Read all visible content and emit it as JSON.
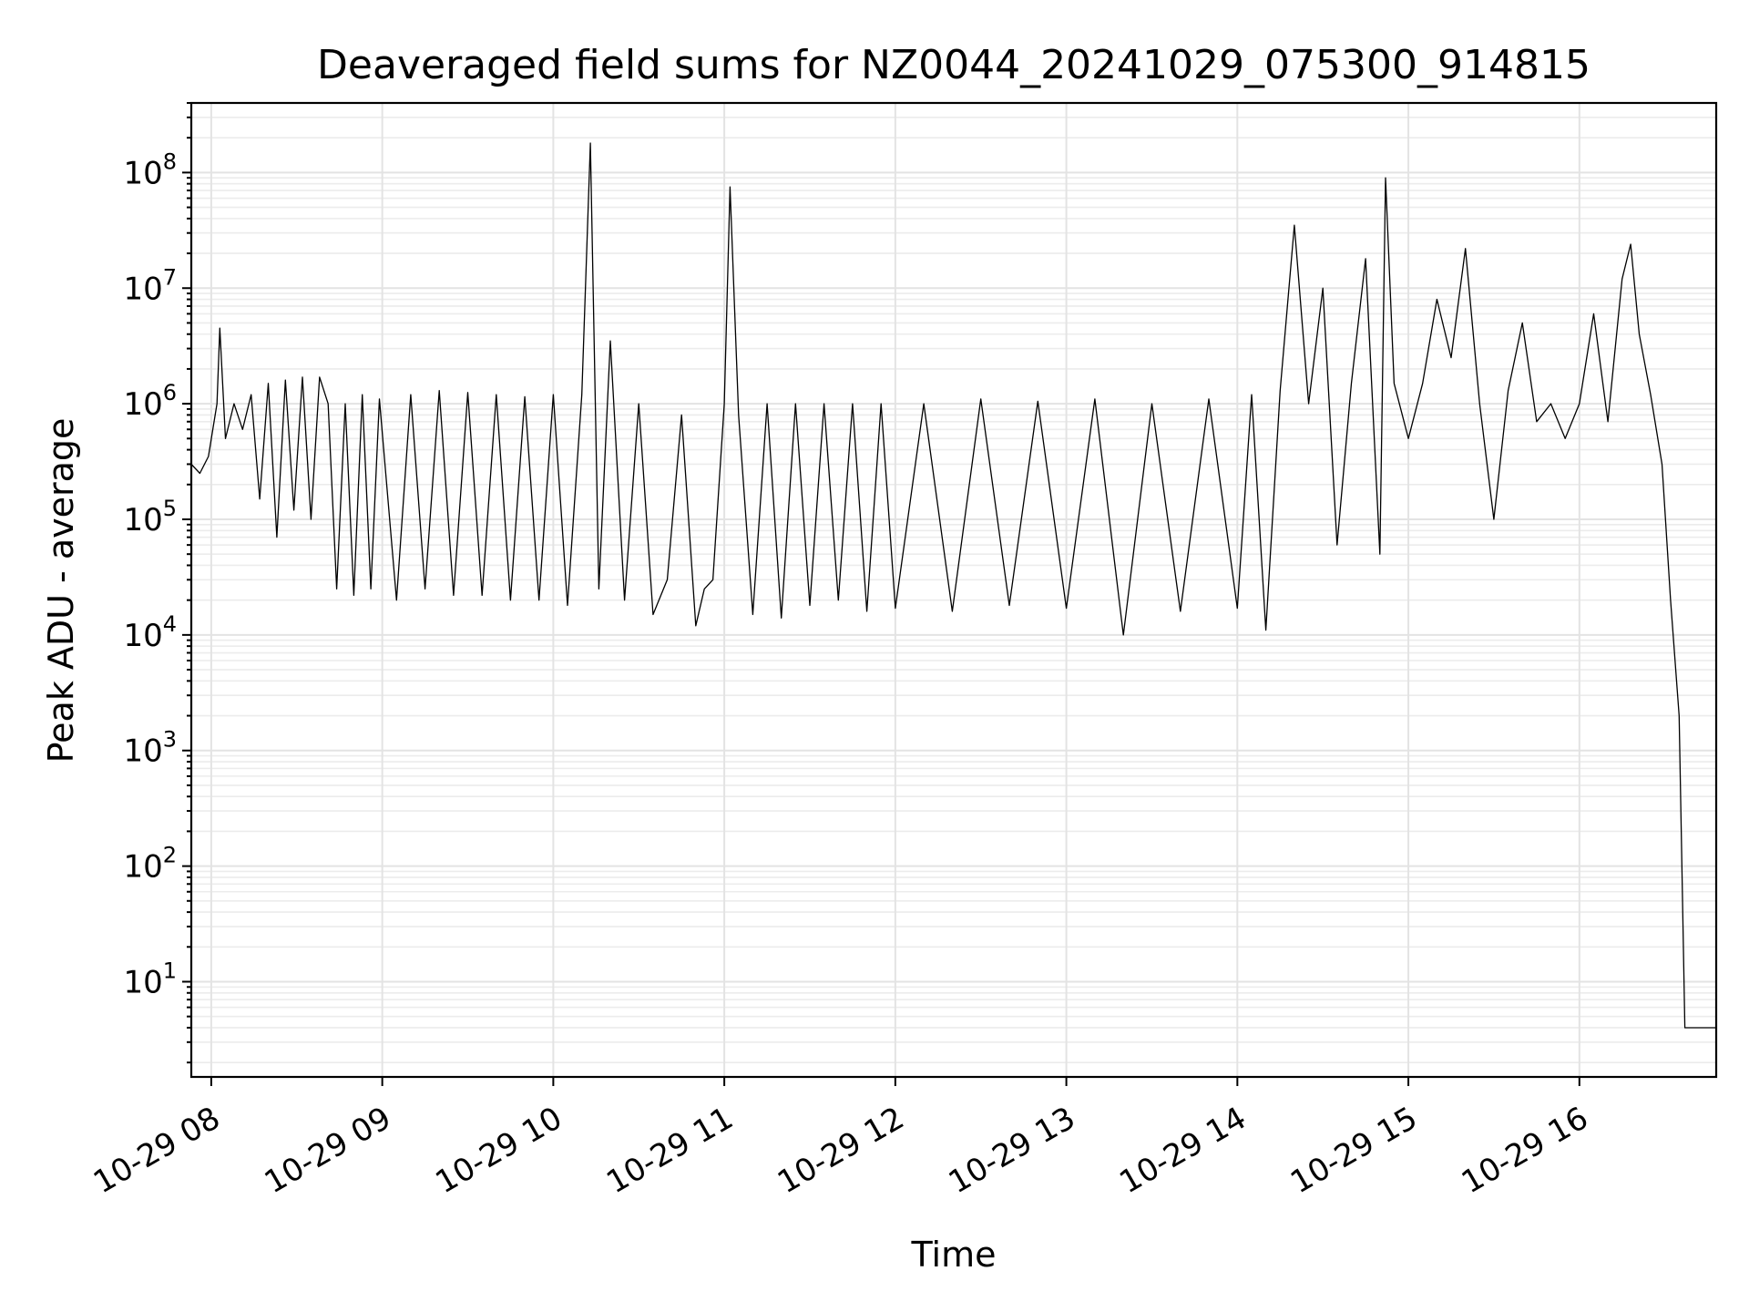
{
  "chart_data": {
    "type": "line",
    "title": "Deaveraged field sums for NZ0044_20241029_075300_914815",
    "xlabel": "Time",
    "ylabel": "Peak ADU - average",
    "yscale": "log",
    "ylim": [
      1.5,
      400000000
    ],
    "xlim": [
      "2024-10-29 07:53",
      "2024-10-29 16:48"
    ],
    "grid": true,
    "x_ticks": [
      "10-29 08",
      "10-29 09",
      "10-29 10",
      "10-29 11",
      "10-29 12",
      "10-29 13",
      "10-29 14",
      "10-29 15",
      "10-29 16"
    ],
    "x_tick_times": [
      "2024-10-29 08:00",
      "2024-10-29 09:00",
      "2024-10-29 10:00",
      "2024-10-29 11:00",
      "2024-10-29 12:00",
      "2024-10-29 13:00",
      "2024-10-29 14:00",
      "2024-10-29 15:00",
      "2024-10-29 16:00"
    ],
    "y_ticks": [
      {
        "base": "10",
        "exp": "1",
        "value": 10
      },
      {
        "base": "10",
        "exp": "2",
        "value": 100
      },
      {
        "base": "10",
        "exp": "3",
        "value": 1000
      },
      {
        "base": "10",
        "exp": "4",
        "value": 10000
      },
      {
        "base": "10",
        "exp": "5",
        "value": 100000
      },
      {
        "base": "10",
        "exp": "6",
        "value": 1000000
      },
      {
        "base": "10",
        "exp": "7",
        "value": 10000000
      },
      {
        "base": "10",
        "exp": "8",
        "value": 100000000
      }
    ],
    "series": [
      {
        "color": "#000000",
        "x": [
          "2024-10-29 07:53",
          "2024-10-29 07:56",
          "2024-10-29 07:59",
          "2024-10-29 08:02",
          "2024-10-29 08:03",
          "2024-10-29 08:05",
          "2024-10-29 08:08",
          "2024-10-29 08:11",
          "2024-10-29 08:14",
          "2024-10-29 08:17",
          "2024-10-29 08:20",
          "2024-10-29 08:23",
          "2024-10-29 08:26",
          "2024-10-29 08:29",
          "2024-10-29 08:32",
          "2024-10-29 08:35",
          "2024-10-29 08:38",
          "2024-10-29 08:41",
          "2024-10-29 08:44",
          "2024-10-29 08:47",
          "2024-10-29 08:50",
          "2024-10-29 08:53",
          "2024-10-29 08:56",
          "2024-10-29 08:59",
          "2024-10-29 09:05",
          "2024-10-29 09:10",
          "2024-10-29 09:15",
          "2024-10-29 09:20",
          "2024-10-29 09:25",
          "2024-10-29 09:30",
          "2024-10-29 09:35",
          "2024-10-29 09:40",
          "2024-10-29 09:45",
          "2024-10-29 09:50",
          "2024-10-29 09:55",
          "2024-10-29 10:00",
          "2024-10-29 10:05",
          "2024-10-29 10:10",
          "2024-10-29 10:13",
          "2024-10-29 10:16",
          "2024-10-29 10:20",
          "2024-10-29 10:25",
          "2024-10-29 10:30",
          "2024-10-29 10:35",
          "2024-10-29 10:40",
          "2024-10-29 10:45",
          "2024-10-29 10:50",
          "2024-10-29 10:53",
          "2024-10-29 10:56",
          "2024-10-29 11:00",
          "2024-10-29 11:02",
          "2024-10-29 11:05",
          "2024-10-29 11:10",
          "2024-10-29 11:15",
          "2024-10-29 11:20",
          "2024-10-29 11:25",
          "2024-10-29 11:30",
          "2024-10-29 11:35",
          "2024-10-29 11:40",
          "2024-10-29 11:45",
          "2024-10-29 11:50",
          "2024-10-29 11:55",
          "2024-10-29 12:00",
          "2024-10-29 12:10",
          "2024-10-29 12:20",
          "2024-10-29 12:30",
          "2024-10-29 12:40",
          "2024-10-29 12:50",
          "2024-10-29 13:00",
          "2024-10-29 13:10",
          "2024-10-29 13:20",
          "2024-10-29 13:30",
          "2024-10-29 13:40",
          "2024-10-29 13:50",
          "2024-10-29 14:00",
          "2024-10-29 14:05",
          "2024-10-29 14:10",
          "2024-10-29 14:15",
          "2024-10-29 14:20",
          "2024-10-29 14:25",
          "2024-10-29 14:30",
          "2024-10-29 14:35",
          "2024-10-29 14:40",
          "2024-10-29 14:45",
          "2024-10-29 14:50",
          "2024-10-29 14:52",
          "2024-10-29 14:55",
          "2024-10-29 15:00",
          "2024-10-29 15:05",
          "2024-10-29 15:10",
          "2024-10-29 15:15",
          "2024-10-29 15:20",
          "2024-10-29 15:25",
          "2024-10-29 15:30",
          "2024-10-29 15:35",
          "2024-10-29 15:40",
          "2024-10-29 15:45",
          "2024-10-29 15:50",
          "2024-10-29 15:55",
          "2024-10-29 16:00",
          "2024-10-29 16:05",
          "2024-10-29 16:10",
          "2024-10-29 16:15",
          "2024-10-29 16:18",
          "2024-10-29 16:21",
          "2024-10-29 16:25",
          "2024-10-29 16:29",
          "2024-10-29 16:32",
          "2024-10-29 16:35",
          "2024-10-29 16:37",
          "2024-10-29 16:48"
        ],
        "y": [
          300000,
          250000,
          350000,
          1000000,
          4500000,
          500000,
          1000000,
          600000,
          1200000,
          150000,
          1500000,
          70000,
          1600000,
          120000,
          1700000,
          100000,
          1700000,
          1000000,
          25000,
          1000000,
          22000,
          1200000,
          25000,
          1100000,
          20000,
          1200000,
          25000,
          1300000,
          22000,
          1250000,
          22000,
          1200000,
          20000,
          1150000,
          20000,
          1200000,
          18000,
          1200000,
          180000000,
          25000,
          3500000,
          20000,
          1000000,
          15000,
          30000,
          800000,
          12000,
          25000,
          30000,
          1000000,
          75000000,
          800000,
          15000,
          1000000,
          14000,
          1000000,
          18000,
          1000000,
          20000,
          1000000,
          16000,
          1000000,
          17000,
          1000000,
          16000,
          1100000,
          18000,
          1050000,
          17000,
          1100000,
          10000,
          1000000,
          16000,
          1100000,
          17000,
          1200000,
          11000,
          1300000,
          35000000,
          1000000,
          10000000,
          60000,
          1500000,
          18000000,
          50000,
          90000000,
          1500000,
          500000,
          1500000,
          8000000,
          2500000,
          22000000,
          1000000,
          100000,
          1300000,
          5000000,
          700000,
          1000000,
          500000,
          1000000,
          6000000,
          700000,
          12000000,
          24000000,
          4000000,
          1200000,
          300000,
          20000,
          2000,
          4,
          4
        ]
      }
    ]
  }
}
